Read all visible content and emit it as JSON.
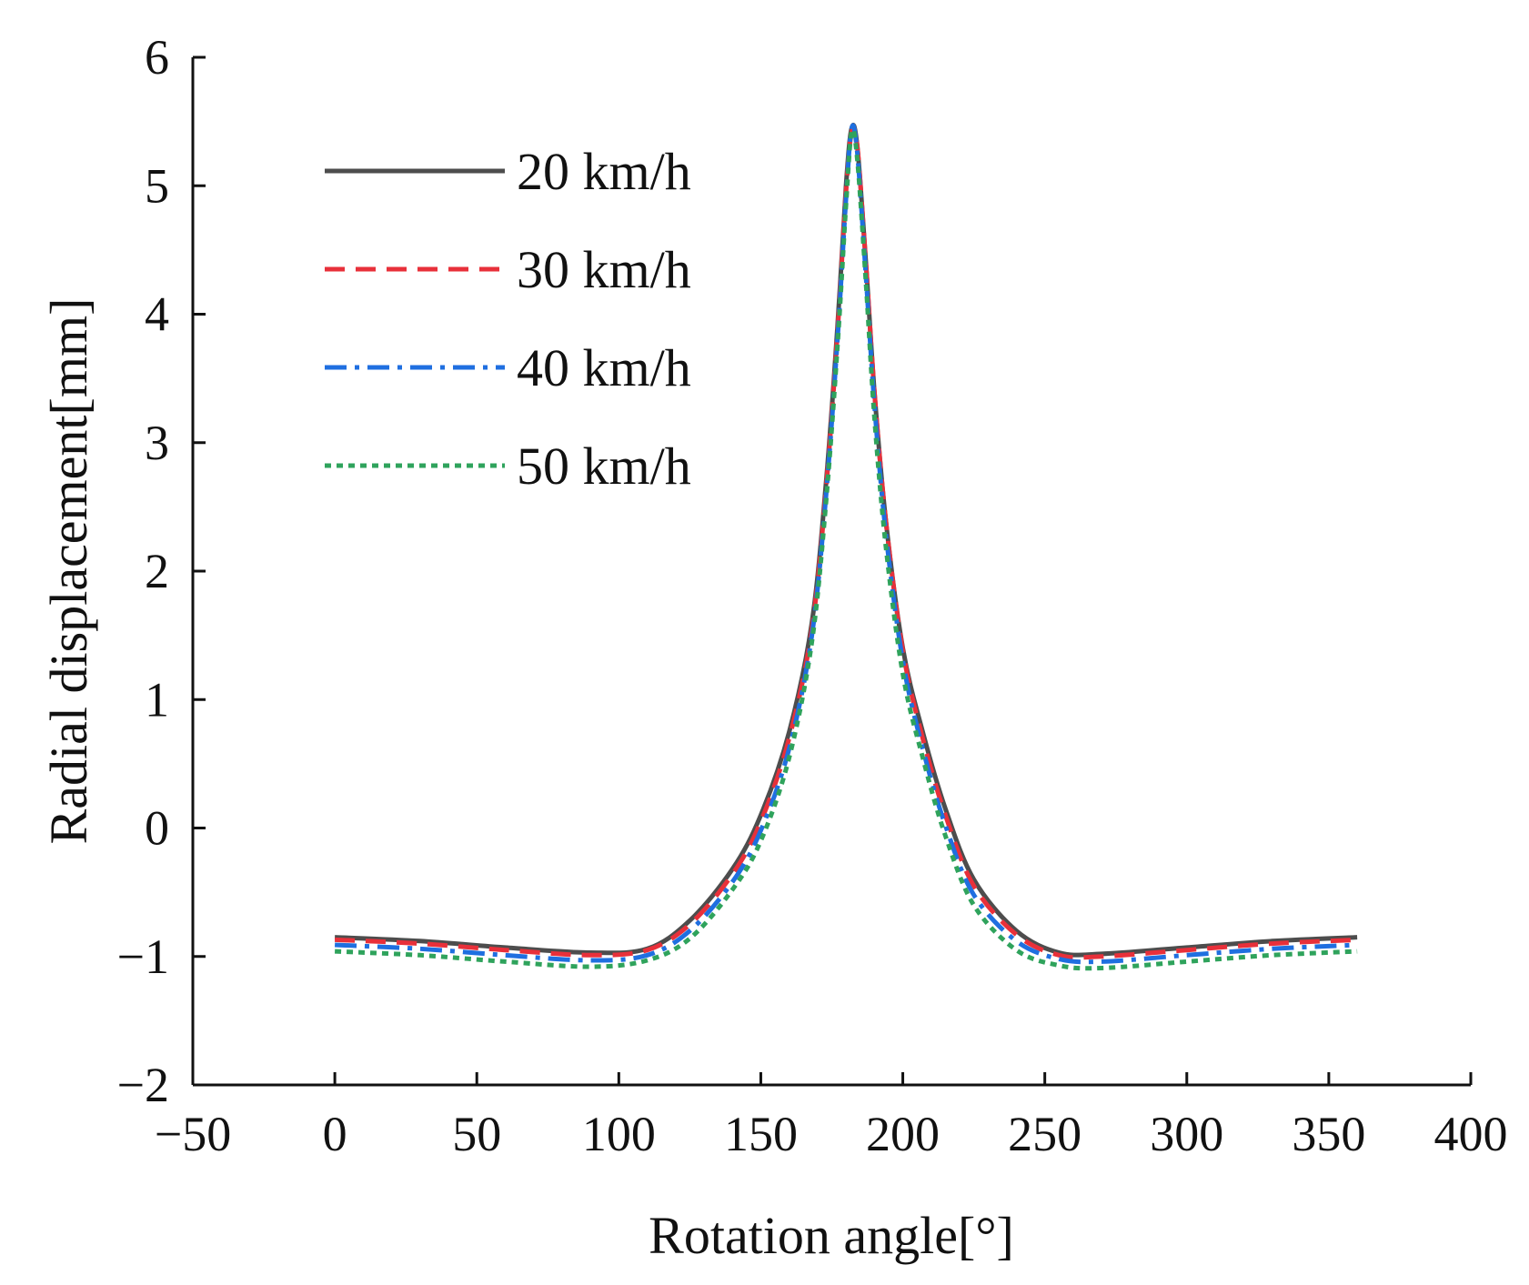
{
  "chart_data": {
    "type": "line",
    "title": "",
    "xlabel": "Rotation angle[°]",
    "ylabel": "Radial displacement[mm]",
    "xlim": [
      -50,
      400
    ],
    "ylim": [
      -2,
      6
    ],
    "xticks": [
      -50,
      0,
      50,
      100,
      150,
      200,
      250,
      300,
      350,
      400
    ],
    "yticks": [
      -2,
      -1,
      0,
      1,
      2,
      3,
      4,
      5,
      6
    ],
    "xtick_labels": [
      "−50",
      "0",
      "50",
      "100",
      "150",
      "200",
      "250",
      "300",
      "350",
      "400"
    ],
    "ytick_labels": [
      "−2",
      "−1",
      "0",
      "1",
      "2",
      "3",
      "4",
      "5",
      "6"
    ],
    "grid": false,
    "legend_position": "top-left",
    "series": [
      {
        "name": "20 km/h",
        "color": "#4d4d4d",
        "style": "solid",
        "points": [
          [
            0,
            -0.85
          ],
          [
            30,
            -0.88
          ],
          [
            60,
            -0.93
          ],
          [
            90,
            -0.97
          ],
          [
            110,
            -0.94
          ],
          [
            125,
            -0.72
          ],
          [
            140,
            -0.32
          ],
          [
            150,
            0.1
          ],
          [
            160,
            0.75
          ],
          [
            168,
            1.6
          ],
          [
            173,
            2.7
          ],
          [
            177,
            3.9
          ],
          [
            180,
            5.0
          ],
          [
            182,
            5.45
          ],
          [
            184,
            5.3
          ],
          [
            187,
            4.4
          ],
          [
            190,
            3.4
          ],
          [
            194,
            2.4
          ],
          [
            200,
            1.4
          ],
          [
            207,
            0.75
          ],
          [
            215,
            0.15
          ],
          [
            225,
            -0.4
          ],
          [
            240,
            -0.8
          ],
          [
            255,
            -0.97
          ],
          [
            270,
            -0.98
          ],
          [
            300,
            -0.93
          ],
          [
            330,
            -0.88
          ],
          [
            360,
            -0.85
          ]
        ]
      },
      {
        "name": "30 km/h",
        "color": "#e8303a",
        "style": "dashed",
        "points": [
          [
            0,
            -0.87
          ],
          [
            30,
            -0.9
          ],
          [
            60,
            -0.95
          ],
          [
            90,
            -0.99
          ],
          [
            110,
            -0.95
          ],
          [
            125,
            -0.75
          ],
          [
            140,
            -0.36
          ],
          [
            150,
            0.05
          ],
          [
            160,
            0.7
          ],
          [
            168,
            1.55
          ],
          [
            173,
            2.65
          ],
          [
            177,
            3.85
          ],
          [
            180,
            4.95
          ],
          [
            182,
            5.42
          ],
          [
            184,
            5.3
          ],
          [
            187,
            4.4
          ],
          [
            190,
            3.4
          ],
          [
            194,
            2.4
          ],
          [
            200,
            1.38
          ],
          [
            207,
            0.7
          ],
          [
            215,
            0.1
          ],
          [
            225,
            -0.45
          ],
          [
            240,
            -0.83
          ],
          [
            255,
            -0.99
          ],
          [
            270,
            -1.0
          ],
          [
            300,
            -0.95
          ],
          [
            330,
            -0.9
          ],
          [
            360,
            -0.87
          ]
        ]
      },
      {
        "name": "40 km/h",
        "color": "#1f6fe0",
        "style": "dashdot",
        "points": [
          [
            0,
            -0.91
          ],
          [
            30,
            -0.94
          ],
          [
            60,
            -0.99
          ],
          [
            90,
            -1.03
          ],
          [
            110,
            -0.99
          ],
          [
            125,
            -0.8
          ],
          [
            140,
            -0.42
          ],
          [
            150,
            -0.02
          ],
          [
            160,
            0.62
          ],
          [
            168,
            1.5
          ],
          [
            173,
            2.6
          ],
          [
            177,
            3.8
          ],
          [
            180,
            4.9
          ],
          [
            182,
            5.45
          ],
          [
            184,
            5.25
          ],
          [
            187,
            4.3
          ],
          [
            190,
            3.3
          ],
          [
            194,
            2.3
          ],
          [
            200,
            1.3
          ],
          [
            207,
            0.62
          ],
          [
            215,
            0.02
          ],
          [
            225,
            -0.52
          ],
          [
            240,
            -0.88
          ],
          [
            255,
            -1.02
          ],
          [
            270,
            -1.04
          ],
          [
            300,
            -0.99
          ],
          [
            330,
            -0.94
          ],
          [
            360,
            -0.91
          ]
        ]
      },
      {
        "name": "50 km/h",
        "color": "#2fa35c",
        "style": "dotted",
        "points": [
          [
            0,
            -0.96
          ],
          [
            30,
            -0.99
          ],
          [
            60,
            -1.04
          ],
          [
            90,
            -1.08
          ],
          [
            110,
            -1.03
          ],
          [
            125,
            -0.86
          ],
          [
            140,
            -0.48
          ],
          [
            150,
            -0.1
          ],
          [
            160,
            0.55
          ],
          [
            168,
            1.45
          ],
          [
            173,
            2.55
          ],
          [
            177,
            3.75
          ],
          [
            180,
            4.85
          ],
          [
            182,
            5.42
          ],
          [
            184,
            5.2
          ],
          [
            187,
            4.25
          ],
          [
            190,
            3.2
          ],
          [
            194,
            2.2
          ],
          [
            200,
            1.2
          ],
          [
            207,
            0.55
          ],
          [
            215,
            -0.06
          ],
          [
            225,
            -0.6
          ],
          [
            240,
            -0.95
          ],
          [
            255,
            -1.07
          ],
          [
            270,
            -1.09
          ],
          [
            300,
            -1.04
          ],
          [
            330,
            -0.99
          ],
          [
            360,
            -0.96
          ]
        ]
      }
    ]
  }
}
